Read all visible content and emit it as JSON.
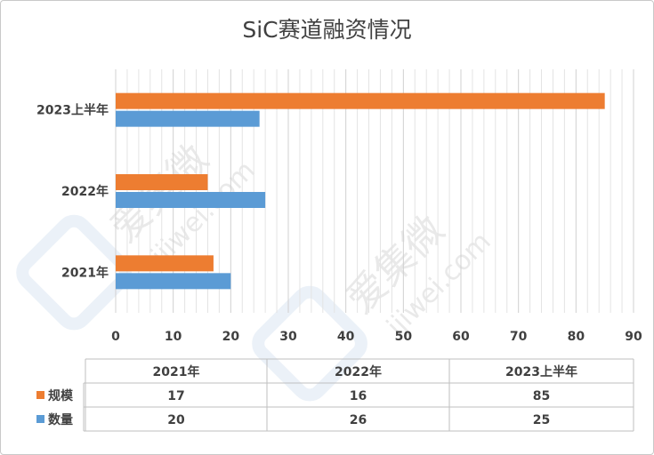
{
  "chart_data": {
    "type": "bar",
    "orientation": "horizontal",
    "title": "SiC赛道融资情况",
    "categories": [
      "2021年",
      "2022年",
      "2023上半年"
    ],
    "series": [
      {
        "name": "规模",
        "color": "#ED7D31",
        "values": [
          17,
          16,
          85
        ]
      },
      {
        "name": "数量",
        "color": "#5B9BD5",
        "values": [
          20,
          26,
          25
        ]
      }
    ],
    "xlim": [
      0,
      90
    ],
    "x_ticks": [
      0,
      10,
      20,
      30,
      40,
      50,
      60,
      70,
      80,
      90
    ],
    "grid": true,
    "legend": "data-table"
  },
  "watermark": {
    "brand": "爱集微",
    "site": "ijiwei.com"
  }
}
